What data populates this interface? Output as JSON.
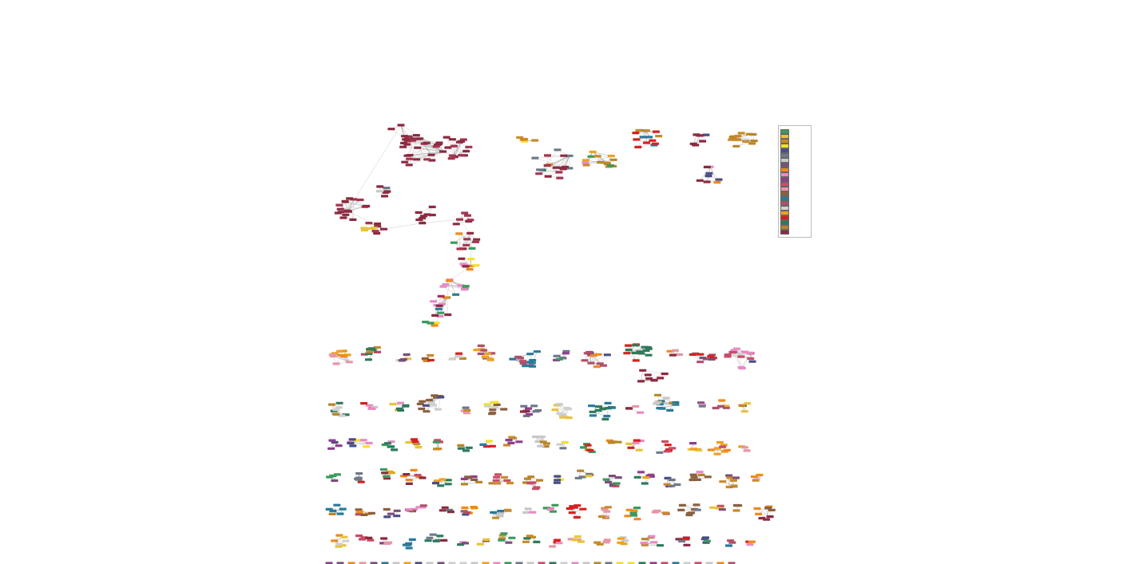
{
  "diagram": {
    "title": "",
    "caption_top": "",
    "caption_mid": "",
    "legend": {
      "title": "",
      "subtitle": "",
      "groups": [
        {
          "name": "",
          "color": "#3b9a5e"
        },
        {
          "name": "",
          "color": "#e8c33a"
        },
        {
          "name": "",
          "color": "#c98a2a"
        },
        {
          "name": "",
          "color": "#f5e02a"
        },
        {
          "name": "",
          "color": "#4a4e84"
        },
        {
          "name": "",
          "color": "#6e7a8a"
        },
        {
          "name": "",
          "color": "#c8c8c8"
        },
        {
          "name": "",
          "color": "#7a4f7a"
        },
        {
          "name": "",
          "color": "#f08a1c"
        },
        {
          "name": "",
          "color": "#e98ac4"
        },
        {
          "name": "",
          "color": "#8e3f8e"
        },
        {
          "name": "",
          "color": "#c94c66"
        },
        {
          "name": "",
          "color": "#e896a6"
        },
        {
          "name": "",
          "color": "#8a6040"
        },
        {
          "name": "",
          "color": "#2a7a9a"
        },
        {
          "name": "",
          "color": "#b0506a"
        },
        {
          "name": "",
          "color": "#d0d0d0"
        },
        {
          "name": "",
          "color": "#f0a020"
        },
        {
          "name": "",
          "color": "#d62020"
        },
        {
          "name": "",
          "color": "#2e7a5a"
        },
        {
          "name": "",
          "color": "#b8862a"
        },
        {
          "name": "",
          "color": "#8c2a40"
        }
      ]
    }
  }
}
